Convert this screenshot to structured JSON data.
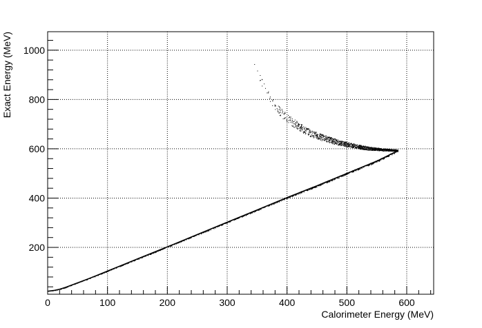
{
  "chart_data": {
    "type": "scatter",
    "title": "",
    "xlabel": "Calorimeter Energy (MeV)",
    "ylabel": "Exact Energy (MeV)",
    "xlim": [
      0,
      645
    ],
    "ylim": [
      10,
      1075
    ],
    "x_ticks": [
      0,
      100,
      200,
      300,
      400,
      500,
      600
    ],
    "y_ticks": [
      200,
      400,
      600,
      800,
      1000
    ],
    "grid": true,
    "grid_style": "dotted",
    "marker_color": "#000000",
    "series": [
      {
        "name": "",
        "branch": "lower",
        "points": [
          [
            0,
            22
          ],
          [
            10,
            25
          ],
          [
            20,
            30
          ],
          [
            30,
            38
          ],
          [
            40,
            47
          ],
          [
            60,
            65
          ],
          [
            80,
            84
          ],
          [
            100,
            104
          ],
          [
            150,
            153
          ],
          [
            200,
            202
          ],
          [
            250,
            252
          ],
          [
            300,
            302
          ],
          [
            350,
            352
          ],
          [
            400,
            402
          ],
          [
            450,
            450
          ],
          [
            500,
            500
          ],
          [
            550,
            550
          ],
          [
            585,
            592
          ]
        ]
      },
      {
        "name": "",
        "branch": "upper",
        "points": [
          [
            340,
            975
          ],
          [
            355,
            890
          ],
          [
            370,
            810
          ],
          [
            385,
            760
          ],
          [
            400,
            725
          ],
          [
            420,
            690
          ],
          [
            440,
            662
          ],
          [
            460,
            645
          ],
          [
            480,
            630
          ],
          [
            500,
            618
          ],
          [
            520,
            608
          ],
          [
            540,
            601
          ],
          [
            560,
            597
          ],
          [
            575,
            595
          ],
          [
            585,
            594
          ]
        ]
      }
    ]
  }
}
